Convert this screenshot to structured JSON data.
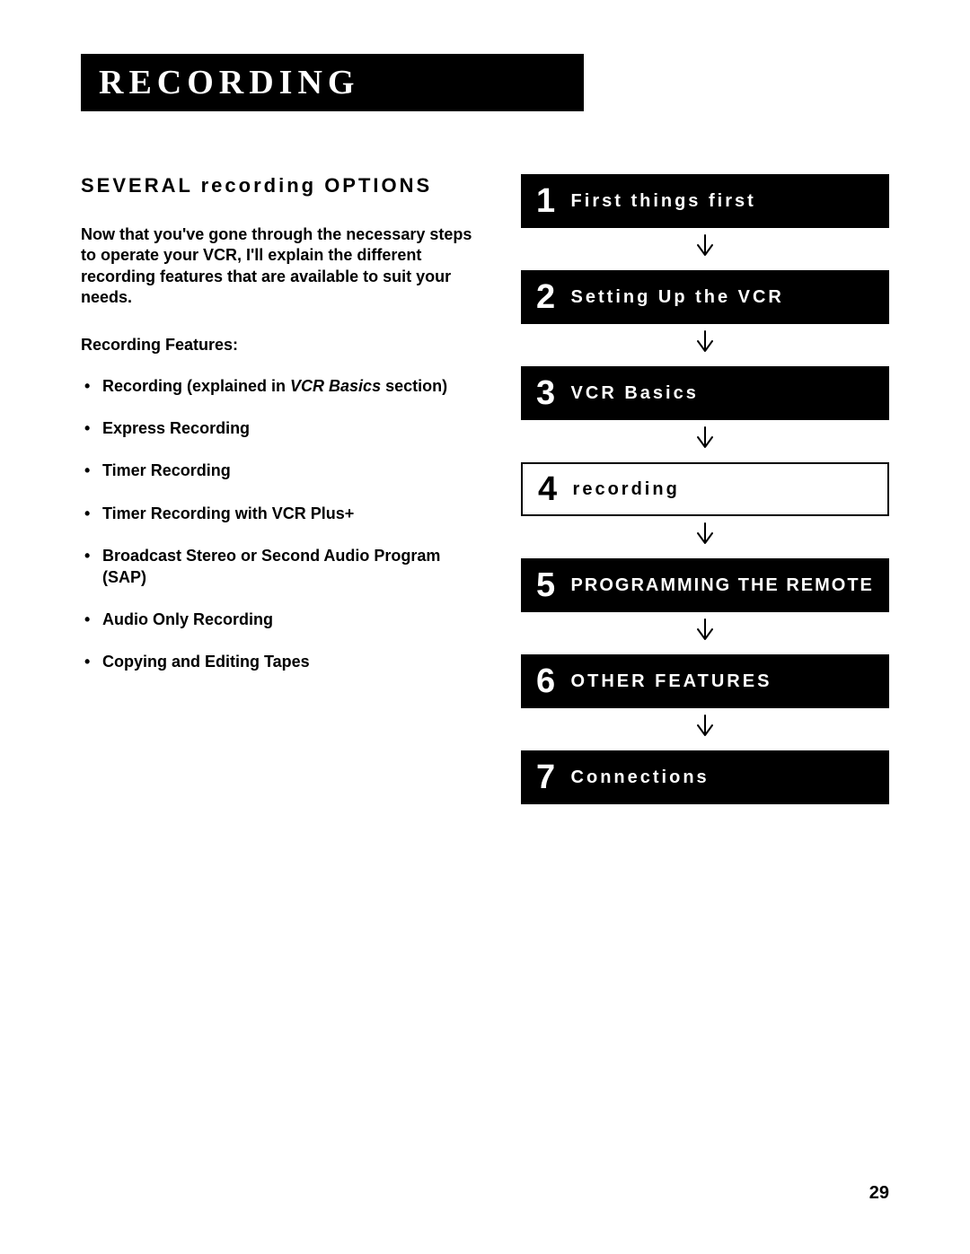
{
  "page_title": "RECORDING",
  "section_heading": "SEVERAL recording OPTIONS",
  "intro_text": "Now that you've gone through the necessary steps to operate your VCR, I'll explain the different recording features that are available to suit your needs.",
  "features_label": "Recording Features:",
  "features": [
    {
      "prefix": "Recording (explained in ",
      "italic": "VCR Basics",
      "suffix": " section)"
    },
    {
      "text": "Express Recording"
    },
    {
      "text": "Timer Recording"
    },
    {
      "text": "Timer Recording with VCR Plus+"
    },
    {
      "text": "Broadcast Stereo or Second Audio Program (SAP)"
    },
    {
      "text": "Audio Only Recording"
    },
    {
      "text": "Copying and Editing Tapes"
    }
  ],
  "nav": [
    {
      "num": "1",
      "title": "First things first",
      "current": false
    },
    {
      "num": "2",
      "title": "Setting Up the VCR",
      "current": false
    },
    {
      "num": "3",
      "title": "VCR Basics",
      "current": false
    },
    {
      "num": "4",
      "title": "recording",
      "current": true
    },
    {
      "num": "5",
      "title": "PROGRAMMING THE REMOTE",
      "current": false
    },
    {
      "num": "6",
      "title": "OTHER FEATURES",
      "current": false
    },
    {
      "num": "7",
      "title": "Connections",
      "current": false
    }
  ],
  "page_number": "29",
  "colors": {
    "black": "#000000",
    "white": "#ffffff"
  },
  "arrow_svg": {
    "width": 22,
    "height": 26,
    "stroke_width": 2
  }
}
